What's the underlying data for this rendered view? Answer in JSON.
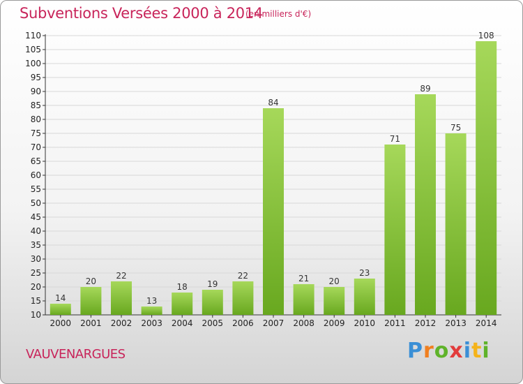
{
  "header": {
    "title": "Subventions Versées 2000 à 2014",
    "subtitle": "(en milliers d'€)"
  },
  "footer": {
    "place": "VAUVENARGUES",
    "logo": "Proxiti"
  },
  "colors": {
    "title": "#c8245a",
    "bar_light": "#a6d85a",
    "bar_dark": "#68a81f",
    "grid": "#d8d8d8"
  },
  "chart_data": {
    "type": "bar",
    "title": "Subventions Versées 2000 à 2014",
    "subtitle": "(en milliers d'€)",
    "categories": [
      "2000",
      "2001",
      "2002",
      "2003",
      "2004",
      "2005",
      "2006",
      "2007",
      "2008",
      "2009",
      "2010",
      "2011",
      "2012",
      "2013",
      "2014"
    ],
    "values": [
      14,
      20,
      22,
      13,
      18,
      19,
      22,
      84,
      21,
      20,
      23,
      71,
      89,
      75,
      108
    ],
    "ylim": [
      10,
      110
    ],
    "yticks": [
      10,
      15,
      20,
      25,
      30,
      35,
      40,
      45,
      50,
      55,
      60,
      65,
      70,
      75,
      80,
      85,
      90,
      95,
      100,
      105,
      110
    ],
    "grid": true,
    "legend": "none"
  }
}
